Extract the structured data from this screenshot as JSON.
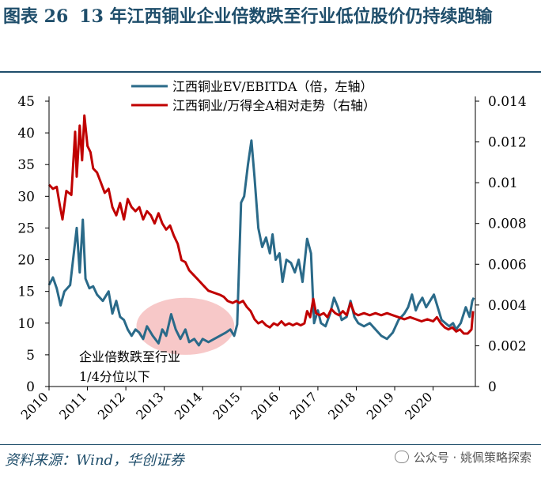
{
  "header": {
    "figure_no": "图表 26",
    "title": "13 年江西铜业企业倍数跌至行业低位股价仍持续跑输"
  },
  "footer": {
    "source": "资料来源：Wind，华创证券",
    "watermark": "公众号 · 姚佩策略探索"
  },
  "colors": {
    "series1": "#2a6a89",
    "series2": "#c00000",
    "highlight": "#f4b6b6",
    "title": "#1f4e6b"
  },
  "chart_data": {
    "type": "line",
    "title": "",
    "x_ticks": [
      "2010",
      "2011",
      "2012",
      "2013",
      "2014",
      "2015",
      "2016",
      "2017",
      "2018",
      "2019",
      "2020"
    ],
    "x_range": [
      2010,
      2021.1
    ],
    "left_axis": {
      "ticks": [
        "0",
        "5",
        "10",
        "15",
        "20",
        "25",
        "30",
        "35",
        "40",
        "45"
      ],
      "range": [
        0,
        45
      ]
    },
    "right_axis": {
      "ticks": [
        "0",
        "0.002",
        "0.004",
        "0.006",
        "0.008",
        "0.01",
        "0.012",
        "0.014"
      ],
      "range": [
        0,
        0.014
      ]
    },
    "legend_position": "top-right",
    "annotation": {
      "line1": "企业倍数跌至行业",
      "line2": "1/4分位以下"
    },
    "series": [
      {
        "name": "江西铜业EV/EBITDA（倍，左轴）",
        "axis": "left",
        "points": [
          [
            2010.0,
            16.0
          ],
          [
            2010.1,
            17.2
          ],
          [
            2010.2,
            15.5
          ],
          [
            2010.3,
            12.8
          ],
          [
            2010.4,
            15.0
          ],
          [
            2010.55,
            16.0
          ],
          [
            2010.72,
            25.0
          ],
          [
            2010.8,
            18.0
          ],
          [
            2010.88,
            26.3
          ],
          [
            2010.95,
            17.0
          ],
          [
            2011.05,
            15.5
          ],
          [
            2011.15,
            15.8
          ],
          [
            2011.25,
            14.5
          ],
          [
            2011.4,
            13.5
          ],
          [
            2011.55,
            15.0
          ],
          [
            2011.65,
            11.5
          ],
          [
            2011.75,
            13.5
          ],
          [
            2011.85,
            11.0
          ],
          [
            2011.95,
            10.5
          ],
          [
            2012.05,
            9.0
          ],
          [
            2012.15,
            8.0
          ],
          [
            2012.25,
            9.0
          ],
          [
            2012.35,
            8.5
          ],
          [
            2012.45,
            7.5
          ],
          [
            2012.55,
            9.5
          ],
          [
            2012.7,
            8.0
          ],
          [
            2012.85,
            6.8
          ],
          [
            2012.95,
            9.0
          ],
          [
            2013.05,
            8.0
          ],
          [
            2013.18,
            11.4
          ],
          [
            2013.3,
            9.0
          ],
          [
            2013.42,
            7.5
          ],
          [
            2013.55,
            9.0
          ],
          [
            2013.65,
            7.0
          ],
          [
            2013.78,
            7.5
          ],
          [
            2013.9,
            6.5
          ],
          [
            2014.0,
            7.5
          ],
          [
            2014.15,
            7.0
          ],
          [
            2014.3,
            7.5
          ],
          [
            2014.45,
            8.0
          ],
          [
            2014.6,
            8.5
          ],
          [
            2014.72,
            9.0
          ],
          [
            2014.82,
            8.0
          ],
          [
            2014.9,
            9.8
          ],
          [
            2015.0,
            29.0
          ],
          [
            2015.08,
            30.0
          ],
          [
            2015.18,
            35.0
          ],
          [
            2015.27,
            38.8
          ],
          [
            2015.35,
            33.0
          ],
          [
            2015.45,
            25.0
          ],
          [
            2015.55,
            22.0
          ],
          [
            2015.65,
            23.5
          ],
          [
            2015.75,
            21.0
          ],
          [
            2015.82,
            24.0
          ],
          [
            2015.9,
            20.0
          ],
          [
            2016.0,
            21.0
          ],
          [
            2016.08,
            16.5
          ],
          [
            2016.18,
            20.0
          ],
          [
            2016.3,
            19.5
          ],
          [
            2016.4,
            18.0
          ],
          [
            2016.5,
            20.0
          ],
          [
            2016.6,
            16.5
          ],
          [
            2016.72,
            23.3
          ],
          [
            2016.82,
            21.0
          ],
          [
            2016.9,
            10.0
          ],
          [
            2017.0,
            12.0
          ],
          [
            2017.08,
            10.0
          ],
          [
            2017.2,
            9.5
          ],
          [
            2017.32,
            11.5
          ],
          [
            2017.42,
            14.0
          ],
          [
            2017.52,
            12.5
          ],
          [
            2017.62,
            10.5
          ],
          [
            2017.75,
            11.0
          ],
          [
            2017.85,
            13.5
          ],
          [
            2017.95,
            11.0
          ],
          [
            2018.05,
            10.0
          ],
          [
            2018.2,
            9.5
          ],
          [
            2018.35,
            10.0
          ],
          [
            2018.5,
            9.0
          ],
          [
            2018.65,
            8.0
          ],
          [
            2018.8,
            7.5
          ],
          [
            2018.95,
            8.5
          ],
          [
            2019.1,
            10.5
          ],
          [
            2019.25,
            11.5
          ],
          [
            2019.35,
            12.5
          ],
          [
            2019.45,
            14.5
          ],
          [
            2019.55,
            12.0
          ],
          [
            2019.62,
            13.0
          ],
          [
            2019.72,
            14.0
          ],
          [
            2019.82,
            12.5
          ],
          [
            2019.92,
            13.5
          ],
          [
            2020.02,
            14.5
          ],
          [
            2020.12,
            12.5
          ],
          [
            2020.22,
            10.5
          ],
          [
            2020.32,
            10.0
          ],
          [
            2020.42,
            9.5
          ],
          [
            2020.52,
            10.0
          ],
          [
            2020.6,
            9.0
          ],
          [
            2020.72,
            10.0
          ],
          [
            2020.85,
            12.5
          ],
          [
            2020.95,
            11.0
          ],
          [
            2021.02,
            13.5
          ],
          [
            2021.06,
            14.0
          ]
        ]
      },
      {
        "name": "江西铜业/万得全A相对走势（右轴）",
        "axis": "right",
        "points": [
          [
            2010.0,
            0.0099
          ],
          [
            2010.1,
            0.0097
          ],
          [
            2010.2,
            0.0098
          ],
          [
            2010.28,
            0.0089
          ],
          [
            2010.35,
            0.0082
          ],
          [
            2010.45,
            0.0096
          ],
          [
            2010.58,
            0.0094
          ],
          [
            2010.68,
            0.0125
          ],
          [
            2010.72,
            0.0103
          ],
          [
            2010.8,
            0.0128
          ],
          [
            2010.86,
            0.0111
          ],
          [
            2010.92,
            0.0133
          ],
          [
            2011.0,
            0.0118
          ],
          [
            2011.08,
            0.0115
          ],
          [
            2011.15,
            0.0107
          ],
          [
            2011.25,
            0.0105
          ],
          [
            2011.35,
            0.01
          ],
          [
            2011.45,
            0.0095
          ],
          [
            2011.55,
            0.0097
          ],
          [
            2011.65,
            0.0088
          ],
          [
            2011.75,
            0.0084
          ],
          [
            2011.85,
            0.009
          ],
          [
            2011.95,
            0.0082
          ],
          [
            2012.05,
            0.0092
          ],
          [
            2012.15,
            0.0088
          ],
          [
            2012.25,
            0.0086
          ],
          [
            2012.35,
            0.0088
          ],
          [
            2012.45,
            0.0082
          ],
          [
            2012.55,
            0.0086
          ],
          [
            2012.65,
            0.0084
          ],
          [
            2012.75,
            0.008
          ],
          [
            2012.85,
            0.0085
          ],
          [
            2012.95,
            0.008
          ],
          [
            2013.05,
            0.0077
          ],
          [
            2013.15,
            0.0079
          ],
          [
            2013.25,
            0.0074
          ],
          [
            2013.35,
            0.007
          ],
          [
            2013.45,
            0.0062
          ],
          [
            2013.55,
            0.0061
          ],
          [
            2013.65,
            0.0057
          ],
          [
            2013.75,
            0.0055
          ],
          [
            2013.85,
            0.0053
          ],
          [
            2014.0,
            0.005
          ],
          [
            2014.15,
            0.0047
          ],
          [
            2014.3,
            0.0046
          ],
          [
            2014.45,
            0.0045
          ],
          [
            2014.55,
            0.0044
          ],
          [
            2014.65,
            0.0042
          ],
          [
            2014.78,
            0.0041
          ],
          [
            2014.88,
            0.0042
          ],
          [
            2014.95,
            0.0041
          ],
          [
            2015.05,
            0.0042
          ],
          [
            2015.15,
            0.0039
          ],
          [
            2015.25,
            0.0037
          ],
          [
            2015.35,
            0.0033
          ],
          [
            2015.45,
            0.0031
          ],
          [
            2015.55,
            0.0032
          ],
          [
            2015.65,
            0.003
          ],
          [
            2015.75,
            0.0029
          ],
          [
            2015.85,
            0.0031
          ],
          [
            2015.95,
            0.003
          ],
          [
            2016.05,
            0.0032
          ],
          [
            2016.15,
            0.003
          ],
          [
            2016.25,
            0.0031
          ],
          [
            2016.35,
            0.003
          ],
          [
            2016.45,
            0.0031
          ],
          [
            2016.55,
            0.003
          ],
          [
            2016.65,
            0.0031
          ],
          [
            2016.72,
            0.0037
          ],
          [
            2016.8,
            0.0034
          ],
          [
            2016.88,
            0.0043
          ],
          [
            2016.95,
            0.0036
          ],
          [
            2017.05,
            0.0035
          ],
          [
            2017.15,
            0.0036
          ],
          [
            2017.25,
            0.0034
          ],
          [
            2017.35,
            0.0038
          ],
          [
            2017.45,
            0.0036
          ],
          [
            2017.55,
            0.0035
          ],
          [
            2017.65,
            0.0037
          ],
          [
            2017.75,
            0.0035
          ],
          [
            2017.85,
            0.0041
          ],
          [
            2017.95,
            0.0036
          ],
          [
            2018.05,
            0.0035
          ],
          [
            2018.2,
            0.0036
          ],
          [
            2018.35,
            0.0035
          ],
          [
            2018.5,
            0.0036
          ],
          [
            2018.65,
            0.0035
          ],
          [
            2018.8,
            0.0036
          ],
          [
            2018.95,
            0.0035
          ],
          [
            2019.1,
            0.0034
          ],
          [
            2019.25,
            0.0033
          ],
          [
            2019.4,
            0.0034
          ],
          [
            2019.55,
            0.0033
          ],
          [
            2019.7,
            0.0032
          ],
          [
            2019.85,
            0.0033
          ],
          [
            2020.0,
            0.0032
          ],
          [
            2020.1,
            0.0034
          ],
          [
            2020.2,
            0.0031
          ],
          [
            2020.3,
            0.0029
          ],
          [
            2020.4,
            0.0028
          ],
          [
            2020.5,
            0.0029
          ],
          [
            2020.6,
            0.0027
          ],
          [
            2020.7,
            0.0028
          ],
          [
            2020.8,
            0.0026
          ],
          [
            2020.9,
            0.0026
          ],
          [
            2021.0,
            0.0028
          ],
          [
            2021.04,
            0.0037
          ]
        ]
      }
    ]
  }
}
